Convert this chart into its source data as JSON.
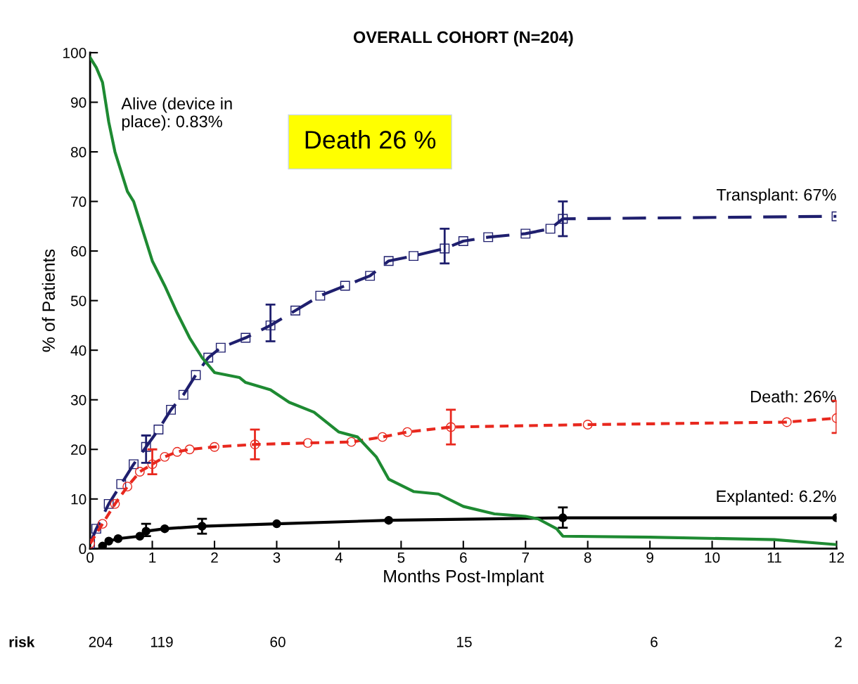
{
  "chart_data": {
    "type": "line",
    "title": "OVERALL COHORT (N=204)",
    "xlabel": "Months Post-Implant",
    "ylabel": "% of Patients",
    "xlim": [
      0,
      12
    ],
    "xticks": [
      0,
      1,
      2,
      3,
      4,
      5,
      6,
      7,
      8,
      9,
      10,
      11,
      12
    ],
    "ylim": [
      0,
      100
    ],
    "yticks": [
      0,
      10,
      20,
      30,
      40,
      50,
      60,
      70,
      80,
      90,
      100
    ],
    "grid": false,
    "series": [
      {
        "name": "Transplant: 67%",
        "color": "#1f1f6e",
        "marker": "square",
        "line_style": "dashed",
        "x": [
          0,
          0.1,
          0.3,
          0.5,
          0.7,
          0.9,
          1.1,
          1.3,
          1.5,
          1.7,
          1.9,
          2.1,
          2.5,
          2.9,
          3.3,
          3.7,
          4.1,
          4.5,
          4.8,
          5.2,
          5.7,
          6,
          6.4,
          7,
          7.4,
          7.6,
          12
        ],
        "values": [
          1,
          4,
          9,
          13,
          17,
          20.5,
          24,
          28,
          31,
          35,
          38.5,
          40.5,
          42.5,
          45,
          48,
          51,
          53,
          55,
          58,
          59,
          60.5,
          62,
          62.8,
          63.5,
          64.5,
          66.5,
          67
        ],
        "errors": [
          null,
          null,
          null,
          null,
          null,
          [
            17.3,
            22.8
          ],
          null,
          null,
          null,
          null,
          null,
          null,
          null,
          [
            41.8,
            49.2
          ],
          null,
          null,
          null,
          null,
          null,
          null,
          [
            57.5,
            64.5
          ],
          null,
          null,
          null,
          null,
          [
            63,
            70
          ],
          null
        ]
      },
      {
        "name": "Death: 26%",
        "color": "#e8281e",
        "marker": "circle",
        "line_style": "dashed",
        "x": [
          0,
          0.2,
          0.4,
          0.6,
          0.8,
          1,
          1.2,
          1.4,
          1.6,
          2,
          2.65,
          3.5,
          4.2,
          4.7,
          5.1,
          5.8,
          8,
          11.2,
          12
        ],
        "values": [
          1,
          5,
          9,
          12.5,
          15.5,
          17,
          18.5,
          19.5,
          20,
          20.5,
          21,
          21.3,
          21.5,
          22.5,
          23.5,
          24.5,
          25,
          25.5,
          26.3
        ],
        "errors": [
          null,
          null,
          null,
          null,
          null,
          [
            15,
            20
          ],
          null,
          null,
          null,
          null,
          [
            18,
            24
          ],
          null,
          null,
          null,
          null,
          [
            21,
            28
          ],
          null,
          null,
          [
            23.3,
            29.8
          ]
        ]
      },
      {
        "name": "Explanted: 6.2%",
        "color": "#000000",
        "marker": "circle",
        "line_style": "solid",
        "x": [
          0.2,
          0.3,
          0.45,
          0.8,
          0.9,
          1.2,
          1.8,
          3,
          4.8,
          7.6,
          12
        ],
        "values": [
          0.5,
          1.5,
          2,
          2.5,
          3.5,
          4,
          4.5,
          5,
          5.7,
          6.2,
          6.2
        ],
        "errors": [
          null,
          null,
          null,
          null,
          [
            2.5,
            5
          ],
          null,
          [
            3,
            6
          ],
          null,
          null,
          [
            4.2,
            8.3
          ],
          null
        ]
      },
      {
        "color": "#1e8a32",
        "marker": "none",
        "line_style": "solid",
        "x": [
          0,
          0.1,
          0.2,
          0.3,
          0.4,
          0.6,
          0.7,
          0.8,
          1,
          1.2,
          1.4,
          1.6,
          1.8,
          2,
          2.4,
          2.5,
          2.9,
          3.2,
          3.6,
          4,
          4.3,
          4.6,
          4.8,
          5.2,
          5.6,
          6,
          6.5,
          7,
          7.2,
          7.5,
          7.6,
          9,
          11,
          12
        ],
        "values": [
          99,
          97,
          94,
          86,
          80,
          72,
          70,
          66,
          58,
          53,
          47.5,
          42.5,
          38.5,
          35.5,
          34.5,
          33.5,
          32,
          29.5,
          27.5,
          23.5,
          22.5,
          18.5,
          14,
          11.5,
          11,
          8.5,
          7,
          6.5,
          6,
          4,
          2.5,
          2.3,
          1.8,
          0.8
        ]
      }
    ],
    "annotations": [
      "Alive (device in\nplace): 0.83%",
      "Death 26 %",
      "risk",
      "204",
      "119",
      "60",
      "15",
      "6",
      "2"
    ]
  }
}
